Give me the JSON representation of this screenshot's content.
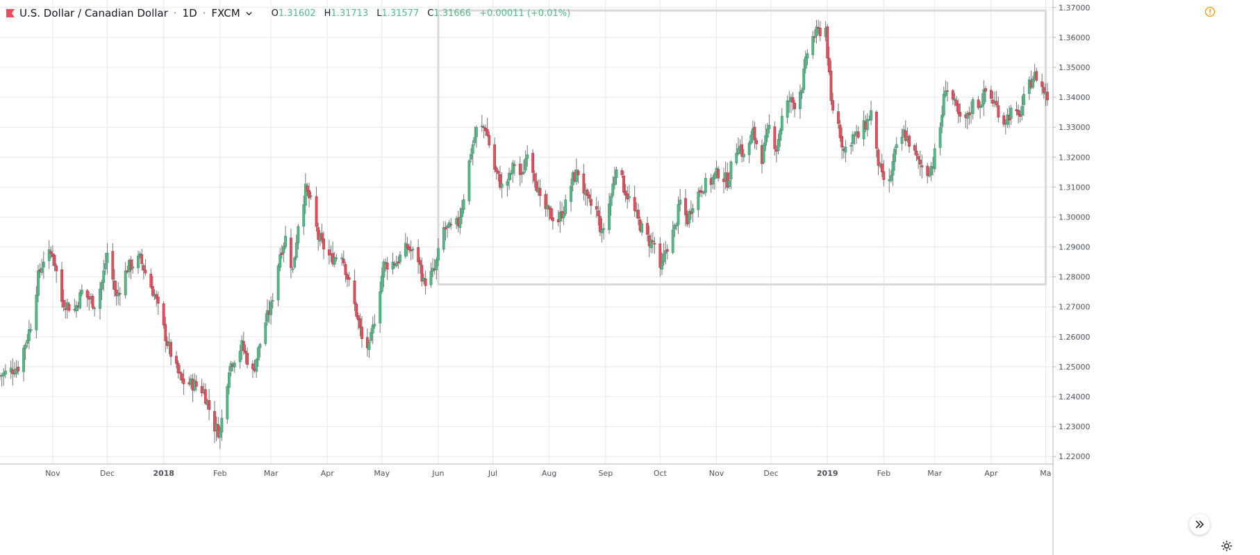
{
  "header": {
    "symbol": "U.S. Dollar / Canadian Dollar",
    "interval": "1D",
    "exchange": "FXCM",
    "open_label": "O",
    "open": "1.31602",
    "high_label": "H",
    "high": "1.31713",
    "low_label": "L",
    "low": "1.31577",
    "close_label": "C",
    "close": "1.31666",
    "change": "+0.00011 (+0.01%)"
  },
  "colors": {
    "up": "#53b987",
    "down": "#eb4d5c",
    "wick": "#737375",
    "grid": "#e8e8e8",
    "axis_text": "#4c525e",
    "flag": "#eb4d5c",
    "warning": "#ff9800",
    "rectangle": "#d9d9d9"
  },
  "icons": {
    "flag": "flag-icon",
    "chevron": "chevron-down-icon",
    "warning": "warning-icon",
    "scroll": "double-chevron-right-icon",
    "settings": "gear-icon"
  },
  "chart_data": {
    "type": "candlestick",
    "title": "",
    "xlabel": "",
    "ylabel": "",
    "grid": true,
    "ylim": [
      1.2175,
      1.3725
    ],
    "y_ticks": [
      "1.22000",
      "1.23000",
      "1.24000",
      "1.25000",
      "1.26000",
      "1.27000",
      "1.28000",
      "1.29000",
      "1.30000",
      "1.31000",
      "1.32000",
      "1.33000",
      "1.34000",
      "1.35000",
      "1.36000",
      "1.37000"
    ],
    "x_ticks": [
      {
        "label": "Nov",
        "date": "2017-11-01"
      },
      {
        "label": "Dec",
        "date": "2017-12-01"
      },
      {
        "label": "2018",
        "date": "2018-01-01",
        "bold": true
      },
      {
        "label": "Feb",
        "date": "2018-02-01"
      },
      {
        "label": "Mar",
        "date": "2018-03-01"
      },
      {
        "label": "Apr",
        "date": "2018-04-01"
      },
      {
        "label": "May",
        "date": "2018-05-01"
      },
      {
        "label": "Jun",
        "date": "2018-06-01"
      },
      {
        "label": "Jul",
        "date": "2018-07-01"
      },
      {
        "label": "Aug",
        "date": "2018-08-01"
      },
      {
        "label": "Sep",
        "date": "2018-09-01"
      },
      {
        "label": "Oct",
        "date": "2018-10-01"
      },
      {
        "label": "Nov",
        "date": "2018-11-01"
      },
      {
        "label": "Dec",
        "date": "2018-12-01"
      },
      {
        "label": "2019",
        "date": "2019-01-01",
        "bold": true
      },
      {
        "label": "Feb",
        "date": "2019-02-01"
      },
      {
        "label": "Mar",
        "date": "2019-03-01"
      },
      {
        "label": "Apr",
        "date": "2019-04-01"
      },
      {
        "label": "Ma",
        "date": "2019-05-01"
      }
    ],
    "x_range": [
      "2017-10-03",
      "2019-05-02"
    ],
    "close_path": [
      {
        "date": "2017-10-03",
        "close": 1.247
      },
      {
        "date": "2017-10-13",
        "close": 1.25
      },
      {
        "date": "2017-10-20",
        "close": 1.264
      },
      {
        "date": "2017-10-24",
        "close": 1.28
      },
      {
        "date": "2017-10-27",
        "close": 1.286
      },
      {
        "date": "2017-11-01",
        "close": 1.288
      },
      {
        "date": "2017-11-06",
        "close": 1.272
      },
      {
        "date": "2017-11-13",
        "close": 1.269
      },
      {
        "date": "2017-11-17",
        "close": 1.275
      },
      {
        "date": "2017-11-24",
        "close": 1.271
      },
      {
        "date": "2017-11-28",
        "close": 1.278
      },
      {
        "date": "2017-12-01",
        "close": 1.288
      },
      {
        "date": "2017-12-06",
        "close": 1.273
      },
      {
        "date": "2017-12-12",
        "close": 1.283
      },
      {
        "date": "2017-12-19",
        "close": 1.286
      },
      {
        "date": "2017-12-27",
        "close": 1.274
      },
      {
        "date": "2018-01-03",
        "close": 1.258
      },
      {
        "date": "2018-01-08",
        "close": 1.249
      },
      {
        "date": "2018-01-11",
        "close": 1.245
      },
      {
        "date": "2018-01-18",
        "close": 1.244
      },
      {
        "date": "2018-01-23",
        "close": 1.242
      },
      {
        "date": "2018-01-29",
        "close": 1.23
      },
      {
        "date": "2018-02-01",
        "close": 1.228
      },
      {
        "date": "2018-02-06",
        "close": 1.25
      },
      {
        "date": "2018-02-13",
        "close": 1.257
      },
      {
        "date": "2018-02-19",
        "close": 1.248
      },
      {
        "date": "2018-02-26",
        "close": 1.265
      },
      {
        "date": "2018-03-01",
        "close": 1.27
      },
      {
        "date": "2018-03-06",
        "close": 1.288
      },
      {
        "date": "2018-03-09",
        "close": 1.293
      },
      {
        "date": "2018-03-13",
        "close": 1.282
      },
      {
        "date": "2018-03-16",
        "close": 1.298
      },
      {
        "date": "2018-03-20",
        "close": 1.309
      },
      {
        "date": "2018-03-23",
        "close": 1.305
      },
      {
        "date": "2018-03-27",
        "close": 1.293
      },
      {
        "date": "2018-04-03",
        "close": 1.286
      },
      {
        "date": "2018-04-09",
        "close": 1.288
      },
      {
        "date": "2018-04-12",
        "close": 1.28
      },
      {
        "date": "2018-04-17",
        "close": 1.268
      },
      {
        "date": "2018-04-20",
        "close": 1.259
      },
      {
        "date": "2018-04-24",
        "close": 1.256
      },
      {
        "date": "2018-04-27",
        "close": 1.266
      },
      {
        "date": "2018-05-02",
        "close": 1.284
      },
      {
        "date": "2018-05-09",
        "close": 1.285
      },
      {
        "date": "2018-05-15",
        "close": 1.29
      },
      {
        "date": "2018-05-21",
        "close": 1.286
      },
      {
        "date": "2018-05-24",
        "close": 1.278
      },
      {
        "date": "2018-05-30",
        "close": 1.282
      },
      {
        "date": "2018-06-04",
        "close": 1.296
      },
      {
        "date": "2018-06-08",
        "close": 1.296
      },
      {
        "date": "2018-06-12",
        "close": 1.298
      },
      {
        "date": "2018-06-15",
        "close": 1.307
      },
      {
        "date": "2018-06-19",
        "close": 1.322
      },
      {
        "date": "2018-06-22",
        "close": 1.329
      },
      {
        "date": "2018-06-27",
        "close": 1.33
      },
      {
        "date": "2018-07-02",
        "close": 1.316
      },
      {
        "date": "2018-07-06",
        "close": 1.31
      },
      {
        "date": "2018-07-10",
        "close": 1.313
      },
      {
        "date": "2018-07-13",
        "close": 1.318
      },
      {
        "date": "2018-07-17",
        "close": 1.313
      },
      {
        "date": "2018-07-20",
        "close": 1.323
      },
      {
        "date": "2018-07-24",
        "close": 1.314
      },
      {
        "date": "2018-07-27",
        "close": 1.305
      },
      {
        "date": "2018-08-01",
        "close": 1.301
      },
      {
        "date": "2018-08-06",
        "close": 1.299
      },
      {
        "date": "2018-08-10",
        "close": 1.304
      },
      {
        "date": "2018-08-14",
        "close": 1.313
      },
      {
        "date": "2018-08-17",
        "close": 1.315
      },
      {
        "date": "2018-08-22",
        "close": 1.305
      },
      {
        "date": "2018-08-27",
        "close": 1.302
      },
      {
        "date": "2018-08-30",
        "close": 1.294
      },
      {
        "date": "2018-09-04",
        "close": 1.307
      },
      {
        "date": "2018-09-07",
        "close": 1.318
      },
      {
        "date": "2018-09-11",
        "close": 1.31
      },
      {
        "date": "2018-09-14",
        "close": 1.306
      },
      {
        "date": "2018-09-18",
        "close": 1.3
      },
      {
        "date": "2018-09-21",
        "close": 1.296
      },
      {
        "date": "2018-09-25",
        "close": 1.292
      },
      {
        "date": "2018-09-28",
        "close": 1.291
      },
      {
        "date": "2018-10-01",
        "close": 1.281
      },
      {
        "date": "2018-10-04",
        "close": 1.289
      },
      {
        "date": "2018-10-09",
        "close": 1.296
      },
      {
        "date": "2018-10-12",
        "close": 1.305
      },
      {
        "date": "2018-10-16",
        "close": 1.299
      },
      {
        "date": "2018-10-19",
        "close": 1.305
      },
      {
        "date": "2018-10-24",
        "close": 1.31
      },
      {
        "date": "2018-10-29",
        "close": 1.312
      },
      {
        "date": "2018-11-02",
        "close": 1.315
      },
      {
        "date": "2018-11-07",
        "close": 1.312
      },
      {
        "date": "2018-11-13",
        "close": 1.325
      },
      {
        "date": "2018-11-16",
        "close": 1.32
      },
      {
        "date": "2018-11-21",
        "close": 1.328
      },
      {
        "date": "2018-11-26",
        "close": 1.32
      },
      {
        "date": "2018-11-30",
        "close": 1.33
      },
      {
        "date": "2018-12-04",
        "close": 1.323
      },
      {
        "date": "2018-12-07",
        "close": 1.333
      },
      {
        "date": "2018-12-11",
        "close": 1.339
      },
      {
        "date": "2018-12-14",
        "close": 1.338
      },
      {
        "date": "2018-12-18",
        "close": 1.344
      },
      {
        "date": "2018-12-21",
        "close": 1.355
      },
      {
        "date": "2018-12-24",
        "close": 1.36
      },
      {
        "date": "2018-12-27",
        "close": 1.362
      },
      {
        "date": "2018-12-31",
        "close": 1.363
      },
      {
        "date": "2019-01-03",
        "close": 1.338
      },
      {
        "date": "2019-01-07",
        "close": 1.331
      },
      {
        "date": "2019-01-10",
        "close": 1.322
      },
      {
        "date": "2019-01-15",
        "close": 1.327
      },
      {
        "date": "2019-01-18",
        "close": 1.327
      },
      {
        "date": "2019-01-23",
        "close": 1.332
      },
      {
        "date": "2019-01-25",
        "close": 1.335
      },
      {
        "date": "2019-01-28",
        "close": 1.321
      },
      {
        "date": "2019-01-31",
        "close": 1.313
      },
      {
        "date": "2019-02-04",
        "close": 1.311
      },
      {
        "date": "2019-02-07",
        "close": 1.321
      },
      {
        "date": "2019-02-12",
        "close": 1.328
      },
      {
        "date": "2019-02-15",
        "close": 1.325
      },
      {
        "date": "2019-02-20",
        "close": 1.318
      },
      {
        "date": "2019-02-25",
        "close": 1.315
      },
      {
        "date": "2019-02-28",
        "close": 1.318
      },
      {
        "date": "2019-03-04",
        "close": 1.33
      },
      {
        "date": "2019-03-07",
        "close": 1.344
      },
      {
        "date": "2019-03-11",
        "close": 1.339
      },
      {
        "date": "2019-03-15",
        "close": 1.332
      },
      {
        "date": "2019-03-19",
        "close": 1.333
      },
      {
        "date": "2019-03-22",
        "close": 1.338
      },
      {
        "date": "2019-03-26",
        "close": 1.338
      },
      {
        "date": "2019-03-29",
        "close": 1.342
      },
      {
        "date": "2019-04-03",
        "close": 1.338
      },
      {
        "date": "2019-04-08",
        "close": 1.332
      },
      {
        "date": "2019-04-12",
        "close": 1.335
      },
      {
        "date": "2019-04-16",
        "close": 1.333
      },
      {
        "date": "2019-04-19",
        "close": 1.339
      },
      {
        "date": "2019-04-24",
        "close": 1.347
      },
      {
        "date": "2019-04-26",
        "close": 1.347
      },
      {
        "date": "2019-04-30",
        "close": 1.342
      },
      {
        "date": "2019-05-02",
        "close": 1.34
      }
    ],
    "rectangle": {
      "start": "2018-06-01",
      "end": "2019-05-01",
      "top": 1.369,
      "bottom": 1.2775
    }
  }
}
